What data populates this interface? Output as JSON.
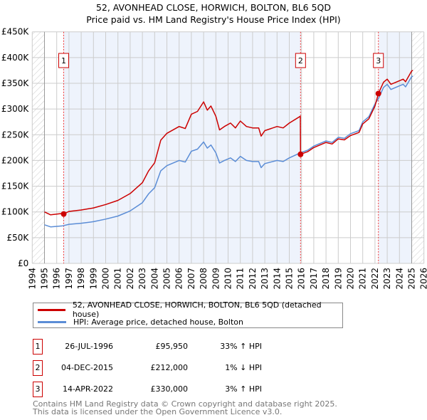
{
  "chart_data": {
    "type": "line",
    "title": "52, AVONHEAD CLOSE, HORWICH, BOLTON, BL6 5QD",
    "subtitle": "Price paid vs. HM Land Registry's House Price Index (HPI)",
    "xlim": [
      1994,
      2026
    ],
    "ylim": [
      0,
      450000
    ],
    "x_ticks": [
      "1994",
      "1995",
      "1996",
      "1997",
      "1998",
      "1999",
      "2000",
      "2001",
      "2002",
      "2003",
      "2004",
      "2005",
      "2006",
      "2007",
      "2008",
      "2009",
      "2010",
      "2011",
      "2012",
      "2013",
      "2014",
      "2015",
      "2016",
      "2017",
      "2018",
      "2019",
      "2020",
      "2021",
      "2022",
      "2023",
      "2024",
      "2025",
      "2026"
    ],
    "y_ticks": [
      {
        "v": 0,
        "label": "£0"
      },
      {
        "v": 50000,
        "label": "£50K"
      },
      {
        "v": 100000,
        "label": "£100K"
      },
      {
        "v": 150000,
        "label": "£150K"
      },
      {
        "v": 200000,
        "label": "£200K"
      },
      {
        "v": 250000,
        "label": "£250K"
      },
      {
        "v": 300000,
        "label": "£300K"
      },
      {
        "v": 350000,
        "label": "£350K"
      },
      {
        "v": 400000,
        "label": "£400K"
      },
      {
        "v": 450000,
        "label": "£450K"
      }
    ],
    "grid": true,
    "data_range": [
      1995,
      2025.1
    ],
    "series": [
      {
        "name": "52, AVONHEAD CLOSE, HORWICH, BOLTON, BL6 5QD (detached house)",
        "color": "#cc0000",
        "x": [
          1995,
          1995.5,
          1996.5,
          1996.57,
          1997,
          1998,
          1999,
          2000,
          2001,
          2002,
          2003,
          2003.5,
          2004,
          2004.5,
          2005,
          2006,
          2006.5,
          2007,
          2007.5,
          2008,
          2008.3,
          2008.6,
          2009,
          2009.3,
          2009.7,
          2010.2,
          2010.6,
          2011,
          2011.5,
          2012,
          2012.5,
          2012.7,
          2013,
          2014,
          2014.5,
          2015,
          2015.9,
          2015.92,
          2016.5,
          2017,
          2018,
          2018.5,
          2019,
          2019.5,
          2020,
          2020.7,
          2021,
          2021.5,
          2022,
          2022.28,
          2022.7,
          2023,
          2023.3,
          2024,
          2024.3,
          2024.5,
          2025,
          2025.1
        ],
        "y": [
          100000,
          94400,
          97100,
          95950,
          101000,
          103700,
          107700,
          114400,
          122400,
          135700,
          156900,
          179600,
          195500,
          239400,
          252700,
          266000,
          262000,
          290000,
          295300,
          313900,
          297900,
          305900,
          286000,
          259400,
          266000,
          272700,
          263300,
          276600,
          266000,
          263300,
          263300,
          247400,
          258000,
          266000,
          263300,
          272700,
          286000,
          212000,
          217000,
          225000,
          235000,
          232000,
          242000,
          240000,
          248500,
          254400,
          271000,
          281000,
          305700,
          330000,
          352000,
          358000,
          348000,
          355000,
          358000,
          353000,
          374000,
          375000
        ]
      },
      {
        "name": "HPI: Average price, detached house, Bolton",
        "color": "#5b8dd6",
        "x": [
          1995,
          1995.5,
          1996.5,
          1997,
          1998,
          1999,
          2000,
          2001,
          2002,
          2003,
          2003.5,
          2004,
          2004.5,
          2005,
          2006,
          2006.5,
          2007,
          2007.5,
          2008,
          2008.3,
          2008.6,
          2009,
          2009.3,
          2009.7,
          2010.2,
          2010.6,
          2011,
          2011.5,
          2012,
          2012.5,
          2012.7,
          2013,
          2014,
          2014.5,
          2015,
          2015.92,
          2016.5,
          2017,
          2018,
          2018.5,
          2019,
          2019.5,
          2020,
          2020.7,
          2021,
          2021.5,
          2022,
          2022.28,
          2022.7,
          2023,
          2023.3,
          2024,
          2024.3,
          2024.5,
          2025,
          2025.1
        ],
        "y": [
          75000,
          71000,
          73000,
          76000,
          78000,
          81000,
          86000,
          92000,
          102000,
          118000,
          135000,
          147000,
          180000,
          190000,
          200000,
          197000,
          218000,
          222000,
          236000,
          224000,
          230000,
          215000,
          195000,
          200000,
          205000,
          198000,
          208000,
          200000,
          198000,
          198000,
          186000,
          194000,
          200000,
          198000,
          205000,
          215000,
          220000,
          228000,
          238000,
          235000,
          245000,
          243000,
          252000,
          258000,
          275000,
          285000,
          310000,
          320000,
          342000,
          348000,
          338000,
          345000,
          348000,
          343000,
          363000,
          364000
        ]
      }
    ],
    "sales": [
      {
        "num": "1",
        "x": 1996.57,
        "price": 95950,
        "date": "26-JUL-1996",
        "price_label": "£95,950",
        "hpi": "33% ↑ HPI"
      },
      {
        "num": "2",
        "x": 2015.92,
        "price": 212000,
        "date": "04-DEC-2015",
        "price_label": "£212,000",
        "hpi": "1% ↓ HPI"
      },
      {
        "num": "3",
        "x": 2022.28,
        "price": 330000,
        "date": "14-APR-2022",
        "price_label": "£330,000",
        "hpi": "3% ↑ HPI"
      }
    ],
    "shaded_ranges": [
      [
        1996.57,
        2015.92
      ],
      [
        2022.28,
        2025.0
      ]
    ],
    "legend_placement": "below"
  },
  "legend": {
    "property": "52, AVONHEAD CLOSE, HORWICH, BOLTON, BL6 5QD (detached house)",
    "hpi": "HPI: Average price, detached house, Bolton"
  },
  "footer": {
    "line1": "Contains HM Land Registry data © Crown copyright and database right 2025.",
    "line2": "This data is licensed under the Open Government Licence v3.0."
  }
}
